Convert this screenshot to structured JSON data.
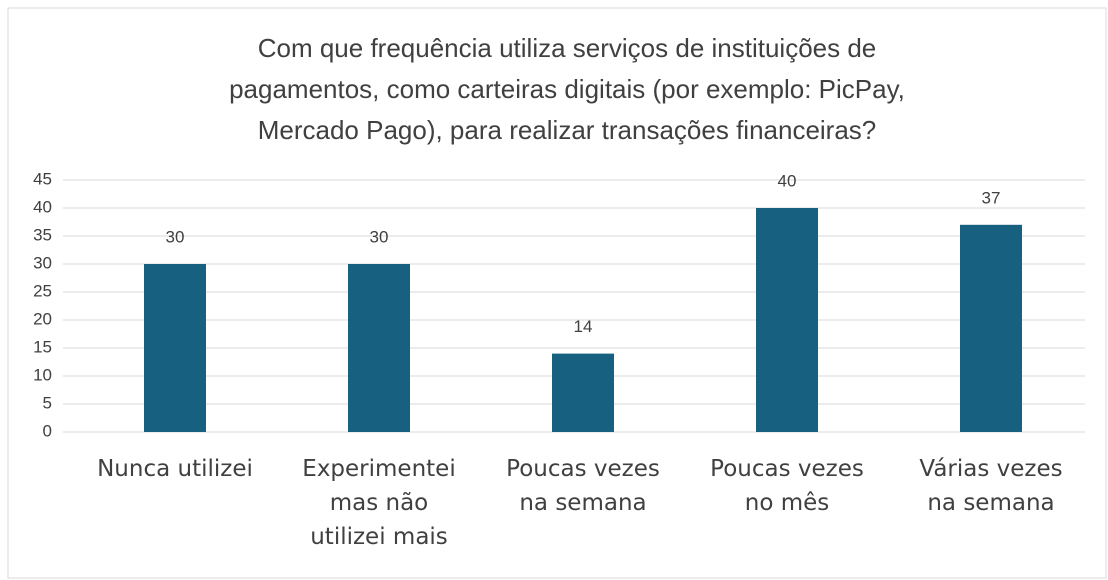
{
  "chart_data": {
    "type": "bar",
    "title": [
      "Com que frequência utiliza serviços de instituições de",
      "pagamentos, como carteiras digitais (por exemplo: PicPay,",
      "Mercado Pago), para realizar transações financeiras?"
    ],
    "categories": [
      "Nunca utilizei",
      "Experimentei mas não utilizei mais",
      "Poucas vezes na semana",
      "Poucas vezes no mês",
      "Várias vezes na semana"
    ],
    "values": [
      30,
      30,
      14,
      40,
      37
    ],
    "color": "#17607f",
    "ylim": [
      0,
      45
    ],
    "yticks": [
      0,
      5,
      10,
      15,
      20,
      25,
      30,
      35,
      40,
      45
    ],
    "grid": true
  }
}
